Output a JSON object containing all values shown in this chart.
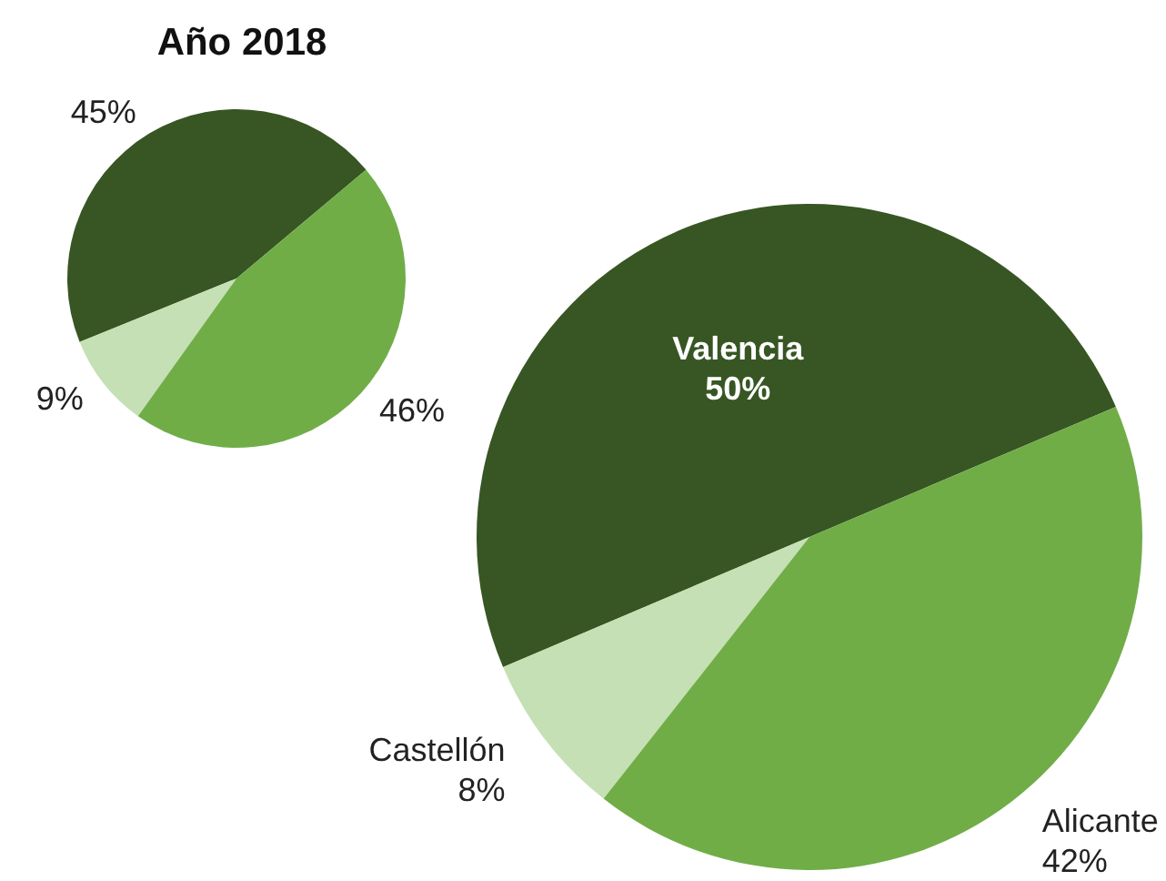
{
  "chart_data": [
    {
      "type": "pie",
      "title": "Año 2018",
      "categories": [
        null,
        null,
        null
      ],
      "values": [
        45,
        9,
        46
      ],
      "colors": [
        "#375623",
        "#c5e0b4",
        "#70ad47"
      ],
      "value_labels": [
        "45%",
        "9%",
        "46%"
      ]
    },
    {
      "type": "pie",
      "categories": [
        "Valencia",
        "Castellón",
        "Alicante"
      ],
      "values": [
        50,
        8,
        42
      ],
      "colors": [
        "#375623",
        "#c5e0b4",
        "#70ad47"
      ],
      "value_labels": [
        "50%",
        "8%",
        "42%"
      ]
    }
  ]
}
